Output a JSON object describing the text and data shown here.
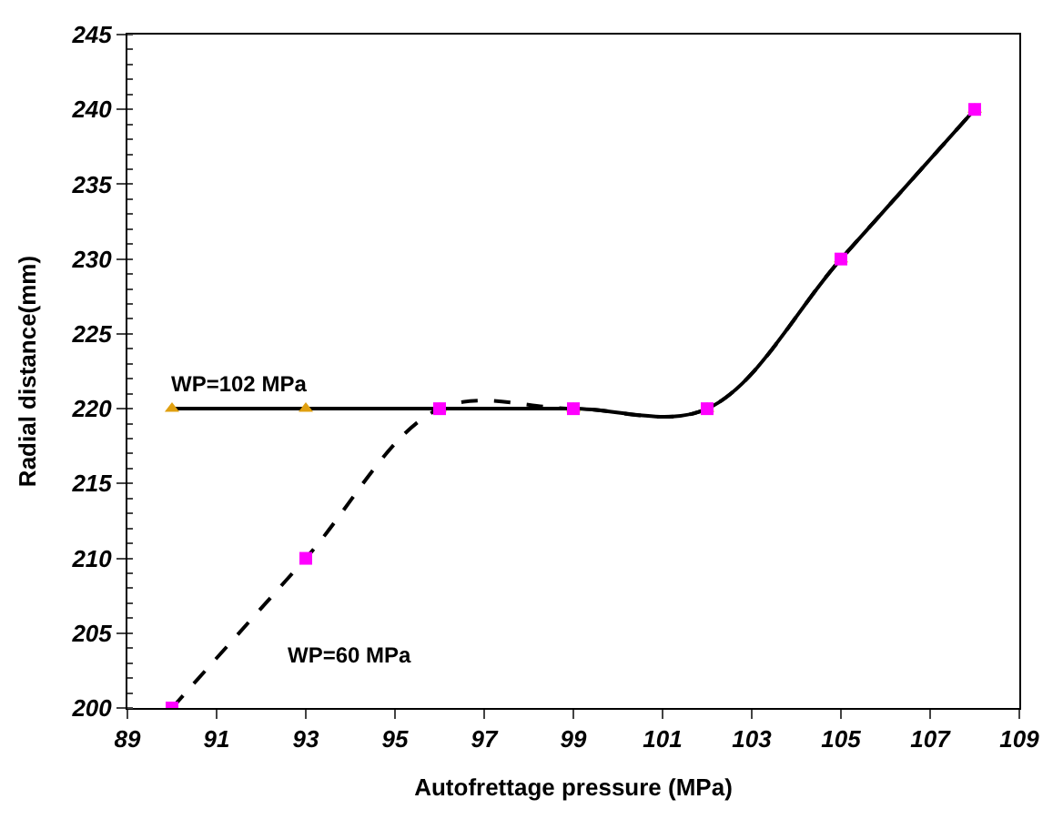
{
  "chart_data": {
    "type": "line",
    "xlabel": "Autofrettage pressure (MPa)",
    "ylabel": "Radial distance(mm)",
    "x": [
      90,
      93,
      96,
      99,
      102,
      105,
      108
    ],
    "series": [
      {
        "name": "WP=102 MPa",
        "color": "#e0a010",
        "marker": "triangle",
        "line_style": "solid",
        "values": [
          220,
          220,
          220,
          220,
          220,
          230,
          240
        ]
      },
      {
        "name": "WP=60 MPa",
        "color": "#ff00ff",
        "marker": "square",
        "line_style": "dashed",
        "values": [
          200,
          210,
          220,
          220,
          220,
          230,
          240
        ]
      }
    ],
    "xlim": [
      89,
      109
    ],
    "xticks": [
      89,
      91,
      93,
      95,
      97,
      99,
      101,
      103,
      105,
      107,
      109
    ],
    "ylim": [
      200,
      245
    ],
    "yticks": [
      200,
      205,
      210,
      215,
      220,
      225,
      230,
      235,
      240,
      245
    ]
  }
}
